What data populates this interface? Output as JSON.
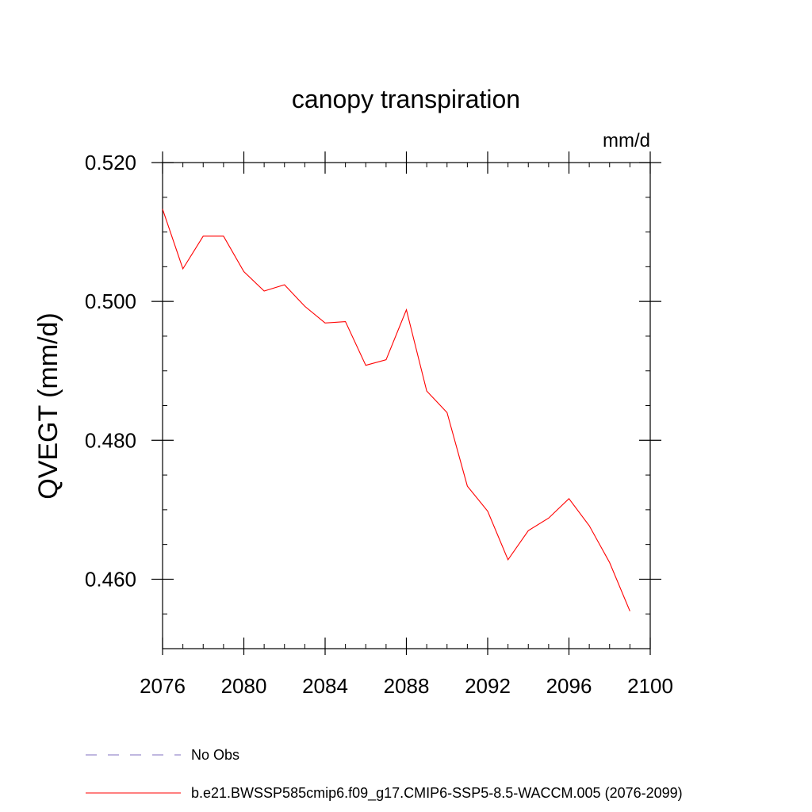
{
  "chart_data": {
    "type": "line",
    "title": "canopy transpiration",
    "units_label": "mm/d",
    "ylabel": "QVEGT  (mm/d)",
    "xlabel": "",
    "xlim": [
      2076,
      2100
    ],
    "ylim": [
      0.45,
      0.52
    ],
    "x_ticks": [
      2076,
      2080,
      2084,
      2088,
      2092,
      2096,
      2100
    ],
    "x_tick_labels": [
      "2076",
      "2080",
      "2084",
      "2088",
      "2092",
      "2096",
      "2100"
    ],
    "y_ticks": [
      0.46,
      0.48,
      0.5,
      0.52
    ],
    "y_tick_labels": [
      "0.460",
      "0.480",
      "0.500",
      "0.520"
    ],
    "y_minor_step": 0.005,
    "x_minor_step": 1,
    "series": [
      {
        "name": "b.e21.BWSSP585cmip6.f09_g17.CMIP6-SSP5-8.5-WACCM.005 (2076-2099)",
        "color": "#ff0000",
        "style": "solid",
        "x": [
          2076,
          2077,
          2078,
          2079,
          2080,
          2081,
          2082,
          2083,
          2084,
          2085,
          2086,
          2087,
          2088,
          2089,
          2090,
          2091,
          2092,
          2093,
          2094,
          2095,
          2096,
          2097,
          2098,
          2099
        ],
        "values": [
          0.5133,
          0.5047,
          0.5094,
          0.5094,
          0.5043,
          0.5015,
          0.5024,
          0.4993,
          0.4969,
          0.4971,
          0.4908,
          0.4916,
          0.4988,
          0.4871,
          0.484,
          0.4734,
          0.4698,
          0.4628,
          0.467,
          0.4688,
          0.4716,
          0.4677,
          0.4624,
          0.4554
        ]
      }
    ],
    "legend": {
      "placement": "bottom",
      "entries": [
        {
          "label": "No Obs",
          "color": "#8070c0",
          "style": "dashed"
        },
        {
          "label": "b.e21.BWSSP585cmip6.f09_g17.CMIP6-SSP5-8.5-WACCM.005 (2076-2099)",
          "color": "#ff0000",
          "style": "solid"
        }
      ]
    },
    "grid": false
  }
}
